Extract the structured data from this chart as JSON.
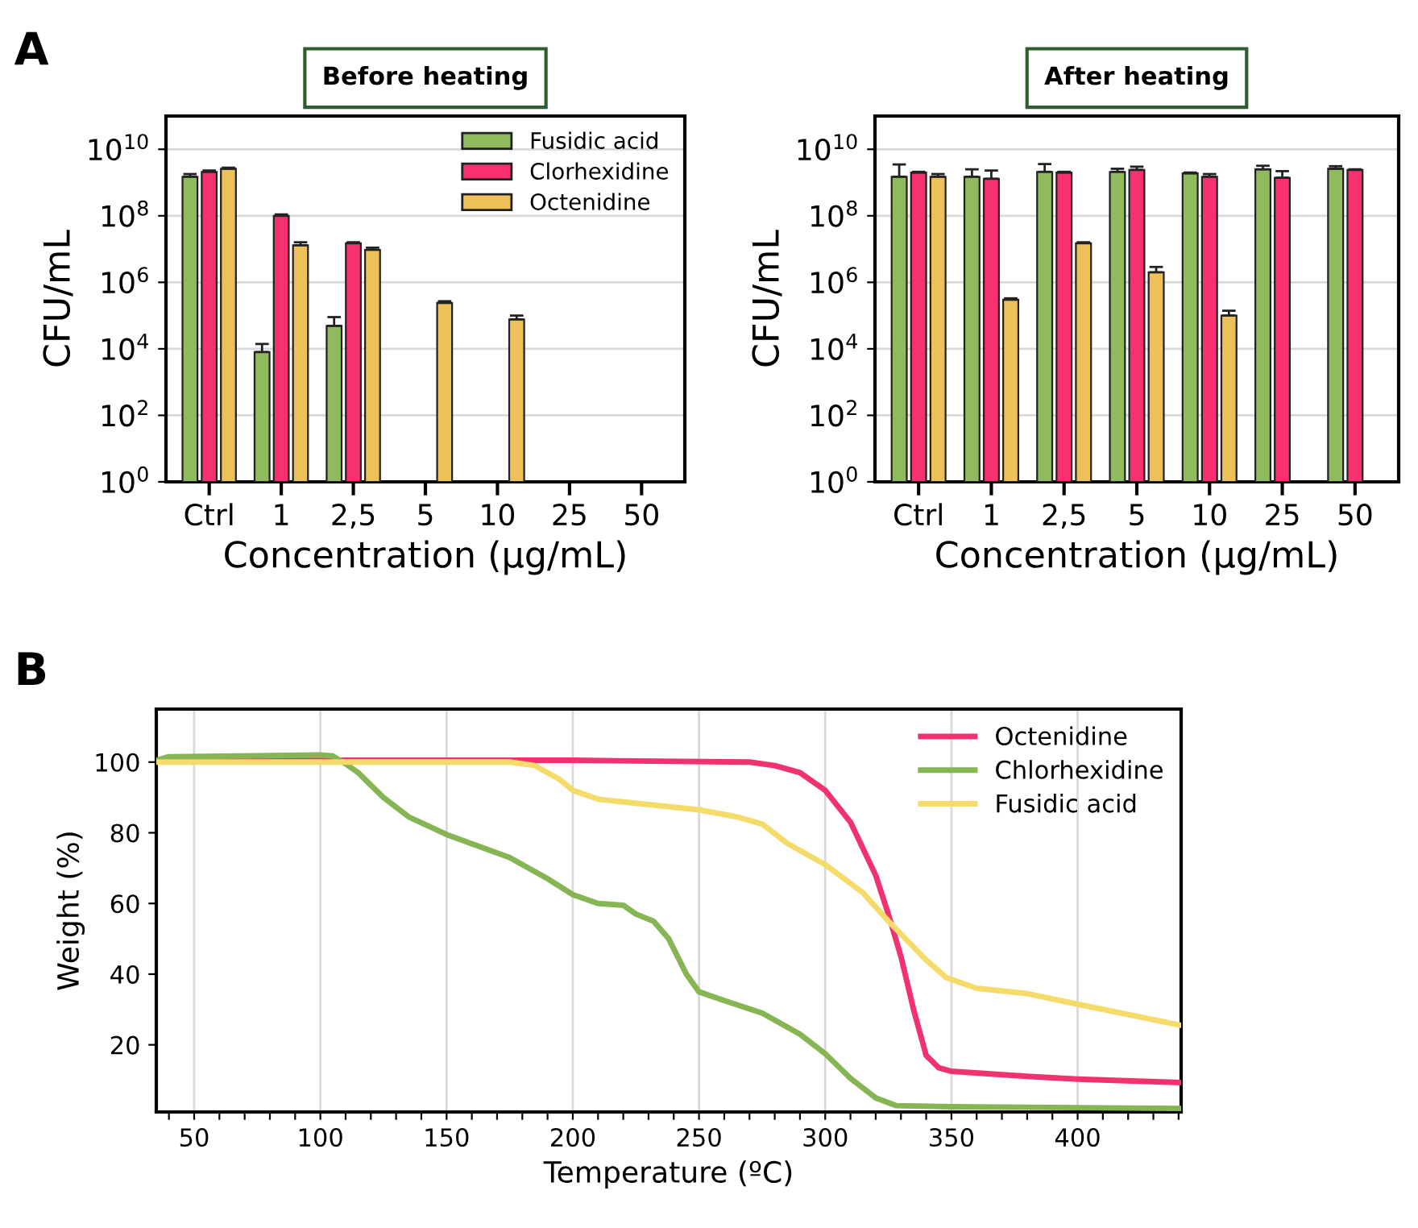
{
  "chart_data": [
    {
      "type": "bar",
      "title": "Before heating",
      "xlabel": "Concentration (µg/mL)",
      "ylabel": "CFU/mL",
      "annotations": [
        "A"
      ],
      "log": "y",
      "legend": "top right",
      "grid": "y",
      "categories": [
        "Ctrl",
        "1",
        "2,5",
        "5",
        "10",
        "25",
        "50"
      ],
      "ylim": [
        1,
        100000000000.0
      ],
      "yticks": [
        {
          "value": 1,
          "label": "10$^{0}$"
        },
        {
          "value": 100,
          "label": "10$^{2}$"
        },
        {
          "value": 10000,
          "label": "10$^{4}$"
        },
        {
          "value": 1000000,
          "label": "10$^{6}$"
        },
        {
          "value": 100000000,
          "label": "10$^{8}$"
        },
        {
          "value": 10000000000,
          "label": "10$^{10}$"
        }
      ],
      "series": [
        {
          "name": "Fusidic acid",
          "color": "#8fba5e",
          "values": [
            1500000000.0,
            8000.0,
            49000.0,
            null,
            null,
            null,
            null
          ],
          "errors": [
            [
              1500000000.0,
              1800000000.0
            ],
            [
              8000.0,
              14000.0
            ],
            [
              49000.0,
              90000.0
            ],
            null,
            null,
            null,
            null
          ]
        },
        {
          "name": "Clorhexidine",
          "color": "#f7306f",
          "values": [
            2100000000.0,
            100000000.0,
            15000000.0,
            null,
            null,
            null,
            null
          ],
          "errors": [
            [
              2100000000.0,
              2300000000.0
            ],
            [
              100000000.0,
              110000000.0
            ],
            [
              15000000.0,
              16000000.0
            ],
            null,
            null,
            null,
            null
          ]
        },
        {
          "name": "Octenidine",
          "color": "#eec05a",
          "values": [
            2600000000.0,
            13000000.0,
            9500000.0,
            240000.0,
            77000.0,
            null,
            null
          ],
          "errors": [
            [
              2600000000.0,
              2800000000.0
            ],
            [
              13000000.0,
              16000000.0
            ],
            [
              9500000.0,
              11000000.0
            ],
            [
              240000.0,
              270000.0
            ],
            [
              77000.0,
              100000.0
            ],
            null,
            null
          ]
        }
      ]
    },
    {
      "type": "bar",
      "title": "After heating",
      "xlabel": "Concentration (µg/mL)",
      "ylabel": "CFU/mL",
      "log": "y",
      "grid": "y",
      "categories": [
        "Ctrl",
        "1",
        "2,5",
        "5",
        "10",
        "25",
        "50"
      ],
      "ylim": [
        1,
        100000000000.0
      ],
      "yticks": [
        {
          "value": 1,
          "label": "10$^{0}$"
        },
        {
          "value": 100,
          "label": "10$^{2}$"
        },
        {
          "value": 10000,
          "label": "10$^{4}$"
        },
        {
          "value": 1000000,
          "label": "10$^{6}$"
        },
        {
          "value": 100000000,
          "label": "10$^{8}$"
        },
        {
          "value": 10000000000,
          "label": "10$^{10}$"
        }
      ],
      "series": [
        {
          "color": "#8fba5e",
          "values": [
            1500000000.0,
            1500000000.0,
            2100000000.0,
            2100000000.0,
            1900000000.0,
            2500000000.0,
            2600000000.0
          ],
          "errors": [
            [
              1500000000.0,
              3500000000.0
            ],
            [
              1500000000.0,
              2500000000.0
            ],
            [
              2100000000.0,
              3600000000.0
            ],
            [
              2100000000.0,
              2600000000.0
            ],
            [
              1900000000.0,
              2000000000.0
            ],
            [
              2500000000.0,
              3200000000.0
            ],
            [
              2600000000.0,
              3100000000.0
            ]
          ]
        },
        {
          "color": "#f7306f",
          "values": [
            2000000000.0,
            1300000000.0,
            2000000000.0,
            2400000000.0,
            1500000000.0,
            1400000000.0,
            2400000000.0
          ],
          "errors": [
            [
              2000000000.0,
              2100000000.0
            ],
            [
              1300000000.0,
              2300000000.0
            ],
            [
              2000000000.0,
              2100000000.0
            ],
            [
              2400000000.0,
              3000000000.0
            ],
            [
              1500000000.0,
              1800000000.0
            ],
            [
              1400000000.0,
              2200000000.0
            ],
            [
              2400000000.0,
              2500000000.0
            ]
          ]
        },
        {
          "color": "#eec05a",
          "values": [
            1500000000.0,
            300000.0,
            15000000.0,
            2000000.0,
            100000.0,
            null,
            null
          ],
          "errors": [
            [
              1500000000.0,
              1800000000.0
            ],
            [
              300000.0,
              330000.0
            ],
            [
              15000000.0,
              16000000.0
            ],
            [
              2000000.0,
              2900000.0
            ],
            [
              100000.0,
              140000.0
            ],
            null,
            null
          ]
        }
      ]
    },
    {
      "type": "line",
      "xlabel": "Temperature (ºC)",
      "ylabel": "Weight (%)",
      "annotations": [
        "B"
      ],
      "grid": "x",
      "legend": "top right",
      "marker": "none",
      "line_style": "solid",
      "xlim": [
        35,
        441
      ],
      "ylim": [
        1,
        115
      ],
      "xticks": [
        {
          "value": 40,
          "label": null
        },
        50,
        {
          "value": 60,
          "label": null
        },
        {
          "value": 70,
          "label": null
        },
        {
          "value": 80,
          "label": null
        },
        {
          "value": 90,
          "label": null
        },
        100,
        {
          "value": 110,
          "label": null
        },
        {
          "value": 120,
          "label": null
        },
        {
          "value": 130,
          "label": null
        },
        {
          "value": 140,
          "label": null
        },
        150,
        {
          "value": 160,
          "label": null
        },
        {
          "value": 170,
          "label": null
        },
        {
          "value": 180,
          "label": null
        },
        {
          "value": 190,
          "label": null
        },
        200,
        {
          "value": 210,
          "label": null
        },
        {
          "value": 220,
          "label": null
        },
        {
          "value": 230,
          "label": null
        },
        {
          "value": 240,
          "label": null
        },
        250,
        {
          "value": 260,
          "label": null
        },
        {
          "value": 270,
          "label": null
        },
        {
          "value": 280,
          "label": null
        },
        {
          "value": 290,
          "label": null
        },
        300,
        {
          "value": 310,
          "label": null
        },
        {
          "value": 320,
          "label": null
        },
        {
          "value": 330,
          "label": null
        },
        {
          "value": 340,
          "label": null
        },
        350,
        {
          "value": 360,
          "label": null
        },
        {
          "value": 370,
          "label": null
        },
        {
          "value": 380,
          "label": null
        },
        {
          "value": 390,
          "label": null
        },
        400,
        {
          "value": 410,
          "label": null
        },
        {
          "value": 420,
          "label": null
        },
        {
          "value": 430,
          "label": null
        },
        {
          "value": 440,
          "label": null
        }
      ],
      "yticks": [
        20,
        40,
        60,
        80,
        100
      ],
      "series": [
        {
          "name": "Octenidine",
          "color": "#f0336e",
          "x": [
            35,
            100,
            200,
            270,
            280,
            290,
            300,
            310,
            320,
            325,
            330,
            335,
            340,
            345,
            350,
            375,
            400,
            441
          ],
          "values": [
            100.3,
            100.5,
            100.5,
            100,
            99,
            97,
            92,
            83,
            68,
            57,
            45,
            30,
            17,
            13.5,
            12.5,
            11.3,
            10.3,
            9.3
          ]
        },
        {
          "name": "Chlorhexidine",
          "color": "#86b553",
          "x": [
            35,
            40,
            100,
            105,
            110,
            115,
            125,
            135,
            150,
            175,
            190,
            200,
            210,
            220,
            225,
            232,
            238,
            245,
            250,
            260,
            275,
            290,
            300,
            310,
            320,
            328,
            350,
            441
          ],
          "values": [
            100.5,
            101.5,
            102,
            101.7,
            99.5,
            97,
            90,
            84.5,
            79.5,
            73,
            67,
            62.5,
            60,
            59.5,
            57,
            55,
            50,
            40,
            35,
            32.5,
            29,
            23,
            17.5,
            10.5,
            5,
            2.8,
            2.5,
            2
          ]
        },
        {
          "name": "Fusidic acid",
          "color": "#f5dc6a",
          "x": [
            35,
            175,
            185,
            195,
            200,
            210,
            250,
            265,
            275,
            285,
            300,
            315,
            325,
            340,
            348,
            360,
            380,
            400,
            441
          ],
          "values": [
            100,
            100,
            99,
            95,
            92,
            89.5,
            86.5,
            84.5,
            82.5,
            77,
            71,
            63,
            55,
            44,
            39,
            36,
            34.5,
            31.5,
            25.5
          ]
        }
      ]
    }
  ]
}
